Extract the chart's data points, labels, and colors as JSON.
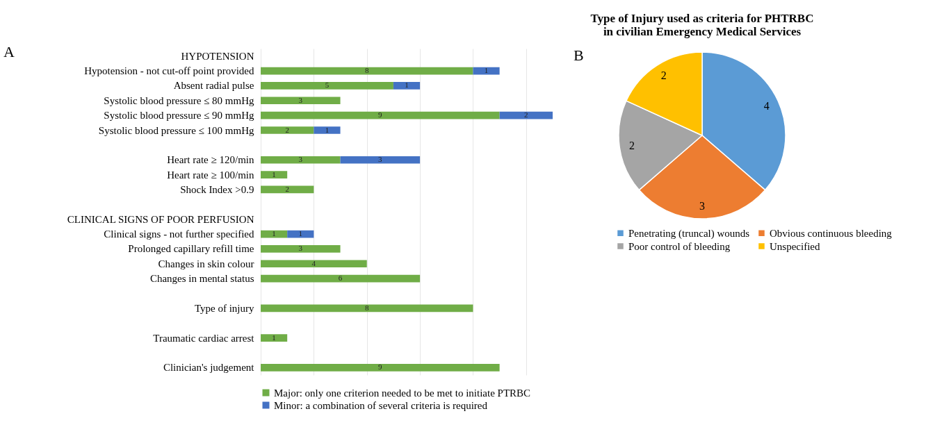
{
  "chart_data": [
    {
      "type": "bar",
      "orientation": "horizontal",
      "stacked": true,
      "data_labels": true,
      "grid": "x",
      "legend": "bottom",
      "tick_labels": "y",
      "annotations": [
        "A"
      ],
      "categories": [
        "HYPOTENSION",
        "Hypotension - not cut-off point provided",
        "Absent radial pulse",
        "Systolic blood pressure ≤ 80 mmHg",
        "Systolic blood pressure ≤ 90 mmHg",
        "Systolic blood pressure ≤ 100 mmHg",
        null,
        "Heart rate ≥ 120/min",
        "Heart rate ≥ 100/min",
        "Shock Index >0.9",
        null,
        "CLINICAL SIGNS OF POOR PERFUSION",
        "Clinical signs - not further specified",
        "Prolonged capillary refill time",
        "Changes in skin colour",
        "Changes in mental status",
        null,
        "Type of injury",
        null,
        "Traumatic cardiac arrest",
        null,
        "Clinician's judgement"
      ],
      "xlim": [
        0,
        11
      ],
      "xticks": [
        {
          "value": 0,
          "label": null
        },
        {
          "value": 2,
          "label": null
        },
        {
          "value": 4,
          "label": null
        },
        {
          "value": 6,
          "label": null
        },
        {
          "value": 8,
          "label": null
        },
        {
          "value": 10,
          "label": null
        }
      ],
      "series": [
        {
          "name": "Major: only one criterion needed to be met to initiate PTRBC",
          "color": "#70ad47",
          "values": [
            null,
            8,
            5,
            3,
            9,
            2,
            null,
            3,
            1,
            2,
            null,
            null,
            1,
            3,
            4,
            6,
            null,
            8,
            null,
            1,
            null,
            9
          ]
        },
        {
          "name": "Minor: a combination of several criteria is required",
          "color": "#4472c4",
          "values": [
            null,
            1,
            1,
            null,
            2,
            1,
            null,
            3,
            null,
            null,
            null,
            null,
            1,
            null,
            null,
            null,
            null,
            null,
            null,
            null,
            null,
            null
          ]
        }
      ]
    },
    {
      "type": "pie",
      "data_labels": true,
      "legend": "bottom",
      "title": "Type of Injury used as criteria for PHTRBC\nin civilian Emergency Medical Services",
      "annotations": [
        "B"
      ],
      "categories": [
        "Penetrating (truncal) wounds",
        "Obvious continuous bleeding",
        "Poor control of bleeding",
        "Unspecified"
      ],
      "values": [
        4,
        3,
        2,
        2
      ],
      "colors": [
        "#5b9bd5",
        "#ed7d31",
        "#a5a5a5",
        "#ffc000"
      ]
    }
  ]
}
